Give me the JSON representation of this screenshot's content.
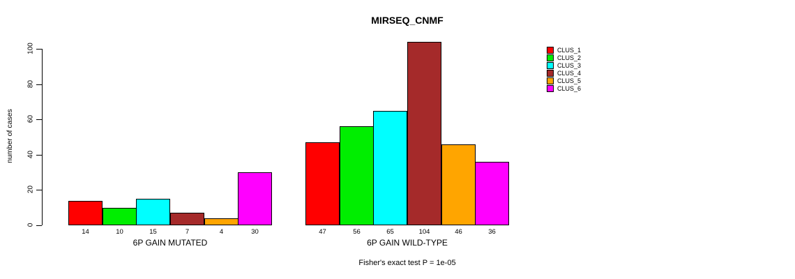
{
  "chart_data": {
    "type": "bar",
    "title": "MIRSEQ_CNMF",
    "ylabel": "number of cases",
    "xlabel": "",
    "caption": "Fisher's exact test P = 1e-05",
    "ylim": [
      0,
      100
    ],
    "yticks": [
      0,
      20,
      40,
      60,
      80,
      100
    ],
    "grid": false,
    "legend_position": "right-outside",
    "bar_value_labels_shown": true,
    "categories": [
      "6P GAIN MUTATED",
      "6P GAIN WILD-TYPE"
    ],
    "series": [
      {
        "name": "CLUS_1",
        "color": "#FF0000",
        "values": [
          14,
          47
        ]
      },
      {
        "name": "CLUS_2",
        "color": "#00EE00",
        "values": [
          10,
          56
        ]
      },
      {
        "name": "CLUS_3",
        "color": "#00FFFF",
        "values": [
          15,
          65
        ]
      },
      {
        "name": "CLUS_4",
        "color": "#A52A2A",
        "values": [
          7,
          104
        ]
      },
      {
        "name": "CLUS_5",
        "color": "#FFA500",
        "values": [
          4,
          46
        ]
      },
      {
        "name": "CLUS_6",
        "color": "#FF00FF",
        "values": [
          30,
          36
        ]
      }
    ]
  }
}
